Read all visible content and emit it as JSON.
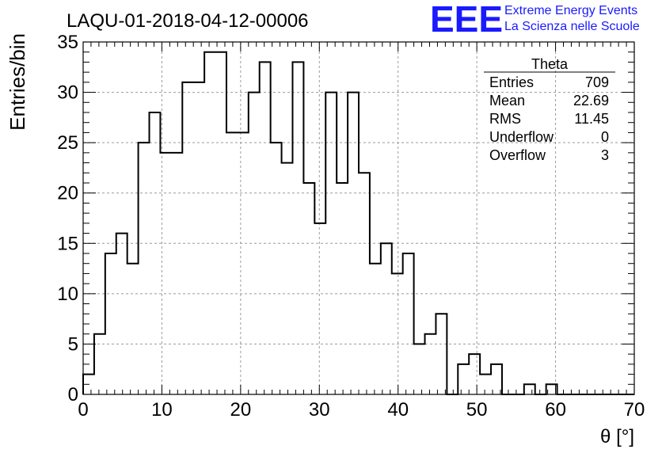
{
  "chart_data": {
    "type": "bar",
    "title": "LAQU-01-2018-04-12-00006",
    "xlabel": "θ [°]",
    "ylabel": "Entries/bin",
    "xlim": [
      0,
      70
    ],
    "ylim": [
      0,
      35
    ],
    "x_ticks": [
      0,
      10,
      20,
      30,
      40,
      50,
      60,
      70
    ],
    "y_ticks": [
      0,
      5,
      10,
      15,
      20,
      25,
      30,
      35
    ],
    "grid": true,
    "bin_width": 1.4,
    "values": [
      2,
      6,
      14,
      16,
      13,
      25,
      28,
      24,
      24,
      31,
      31,
      34,
      34,
      26,
      26,
      30,
      33,
      25,
      23,
      33,
      21,
      17,
      30,
      21,
      30,
      22,
      13,
      15,
      12,
      14,
      5,
      6,
      8,
      0,
      3,
      4,
      2,
      3,
      0,
      0,
      1,
      0,
      1,
      0,
      0,
      0,
      0,
      0,
      0,
      0
    ],
    "stats_box": {
      "title": "Theta",
      "rows": [
        {
          "label": "Entries",
          "value": "709"
        },
        {
          "label": "Mean",
          "value": "22.69"
        },
        {
          "label": "RMS",
          "value": "11.45"
        },
        {
          "label": "Underflow",
          "value": "0"
        },
        {
          "label": "Overflow",
          "value": "3"
        }
      ]
    }
  },
  "logo": {
    "mark": "EEE",
    "line1": "Extreme Energy Events",
    "line2": "La Scienza nelle Scuole",
    "color": "#1a1aff"
  },
  "colors": {
    "line": "#000000",
    "grid": "#9a9a9a"
  }
}
